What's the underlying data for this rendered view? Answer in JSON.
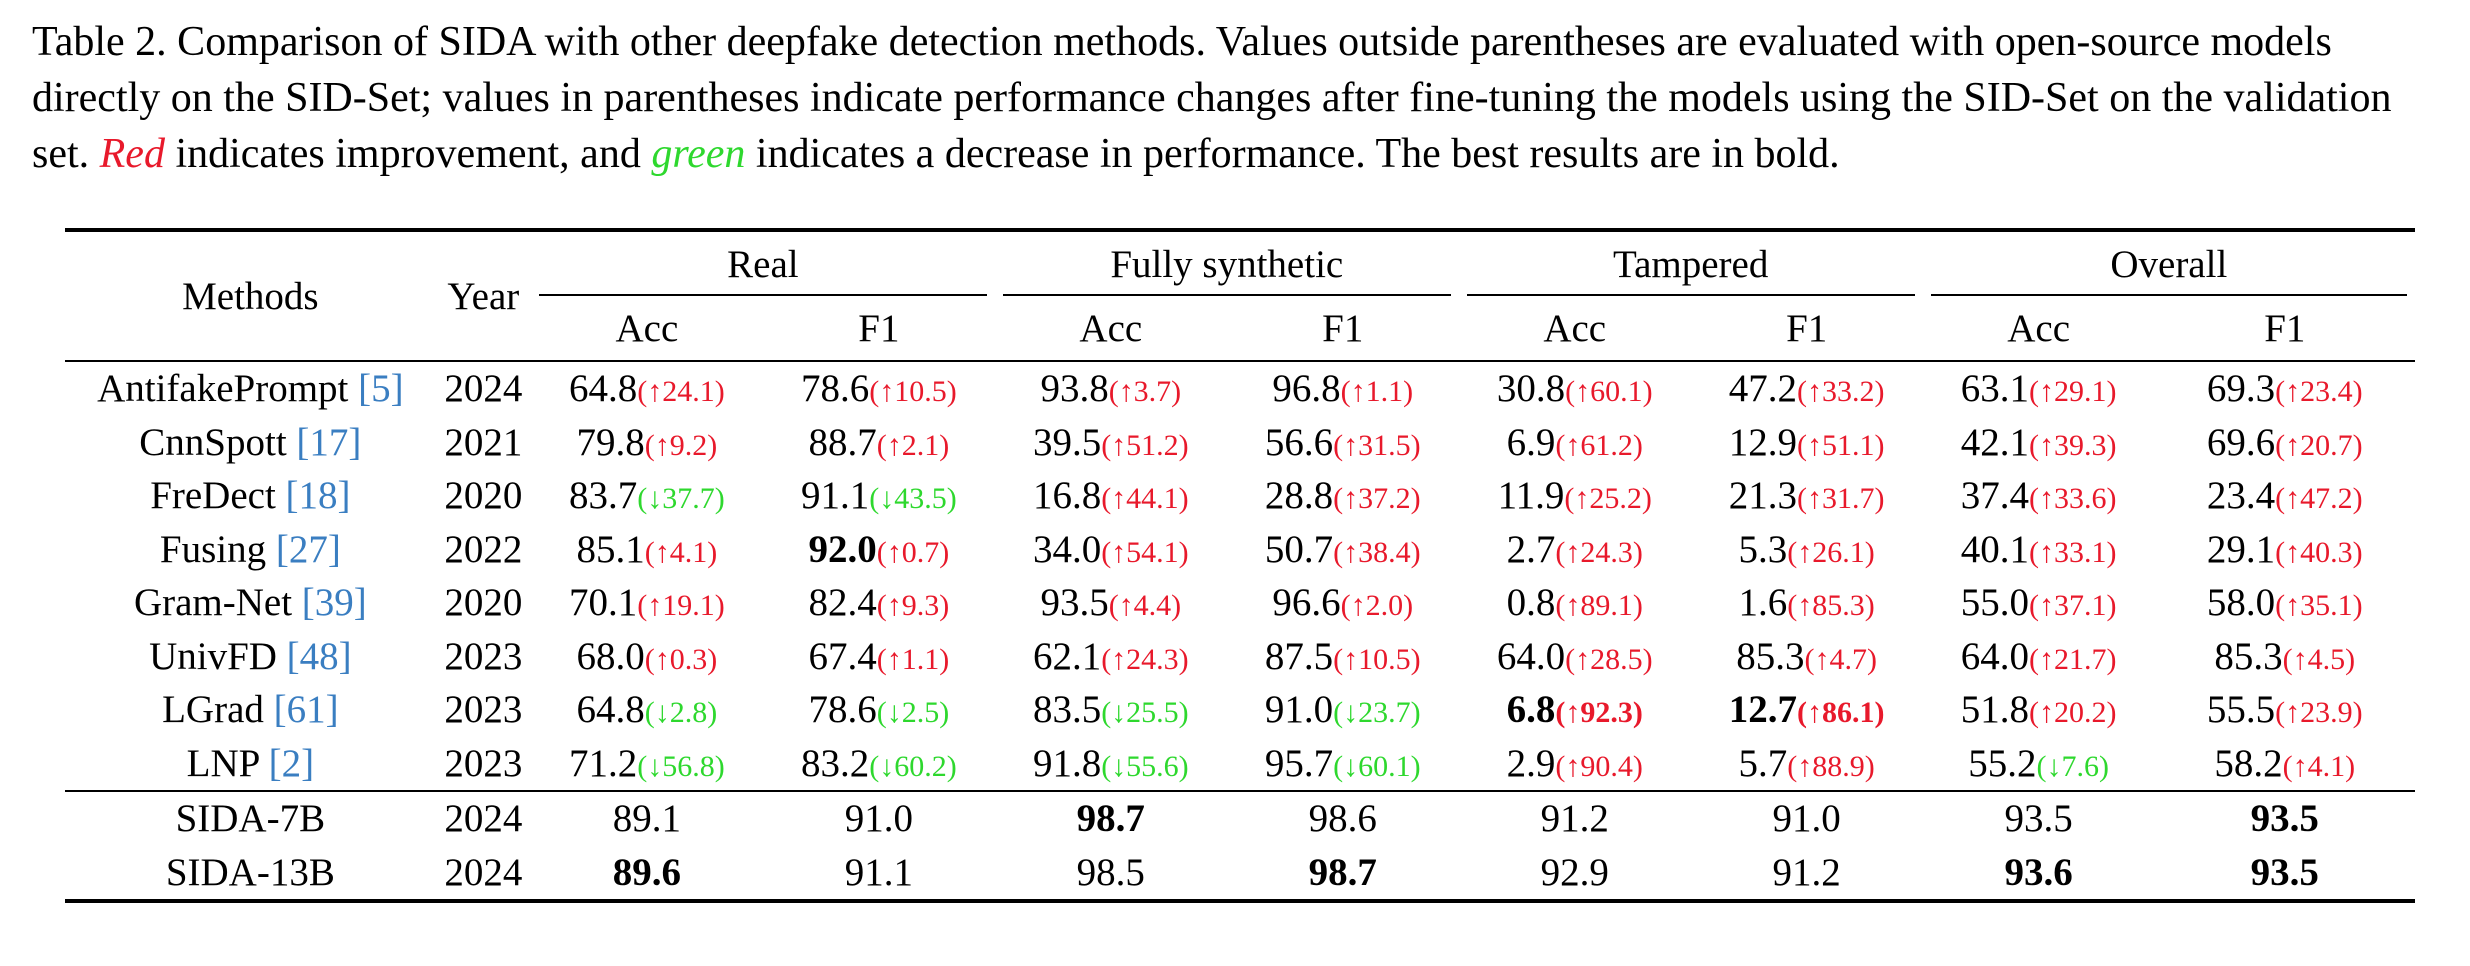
{
  "caption": {
    "prefix": "Table 2. Comparison of SIDA with other deepfake detection methods. Values outside parentheses are evaluated with open-source models directly on the SID-Set; values in parentheses indicate performance changes after fine-tuning the models using the SID-Set on the validation set. ",
    "red_word": "Red",
    "middle": " indicates improvement, and ",
    "green_word": "green",
    "suffix": " indicates a decrease in performance. The best results are in bold."
  },
  "header": {
    "methods": "Methods",
    "year": "Year",
    "groups": [
      "Real",
      "Fully synthetic",
      "Tampered",
      "Overall"
    ],
    "subcols": [
      "Acc",
      "F1",
      "Acc",
      "F1",
      "Acc",
      "F1",
      "Acc",
      "F1"
    ]
  },
  "rows": [
    {
      "name": "AntifakePrompt ",
      "cite": "[5]",
      "year": "2024",
      "cells": [
        [
          "64.8",
          "(↑24.1)",
          "up"
        ],
        [
          "78.6",
          "(↑10.5)",
          "up"
        ],
        [
          "93.8",
          "(↑3.7)",
          "up"
        ],
        [
          "96.8",
          "(↑1.1)",
          "up"
        ],
        [
          "30.8",
          "(↑60.1)",
          "up"
        ],
        [
          "47.2",
          "(↑33.2)",
          "up"
        ],
        [
          "63.1",
          "(↑29.1)",
          "up"
        ],
        [
          "69.3",
          "(↑23.4)",
          "up"
        ]
      ]
    },
    {
      "name": "CnnSpott ",
      "cite": "[17]",
      "year": "2021",
      "cells": [
        [
          "79.8",
          "(↑9.2)",
          "up"
        ],
        [
          "88.7",
          "(↑2.1)",
          "up"
        ],
        [
          "39.5",
          "(↑51.2)",
          "up"
        ],
        [
          "56.6",
          "(↑31.5)",
          "up"
        ],
        [
          "6.9",
          "(↑61.2)",
          "up"
        ],
        [
          "12.9",
          "(↑51.1)",
          "up"
        ],
        [
          "42.1",
          "(↑39.3)",
          "up"
        ],
        [
          "69.6",
          "(↑20.7)",
          "up"
        ]
      ]
    },
    {
      "name": "FreDect ",
      "cite": "[18]",
      "year": "2020",
      "cells": [
        [
          "83.7",
          "(↓37.7)",
          "dn"
        ],
        [
          "91.1",
          "(↓43.5)",
          "dn"
        ],
        [
          "16.8",
          "(↑44.1)",
          "up"
        ],
        [
          "28.8",
          "(↑37.2)",
          "up"
        ],
        [
          "11.9",
          "(↑25.2)",
          "up"
        ],
        [
          "21.3",
          "(↑31.7)",
          "up"
        ],
        [
          "37.4",
          "(↑33.6)",
          "up"
        ],
        [
          "23.4",
          "(↑47.2)",
          "up"
        ]
      ]
    },
    {
      "name": "Fusing ",
      "cite": "[27]",
      "year": "2022",
      "cells": [
        [
          "85.1",
          "(↑4.1)",
          "up"
        ],
        [
          "92.0",
          "(↑0.7)",
          "up",
          "b"
        ],
        [
          "34.0",
          "(↑54.1)",
          "up"
        ],
        [
          "50.7",
          "(↑38.4)",
          "up"
        ],
        [
          "2.7",
          "(↑24.3)",
          "up"
        ],
        [
          "5.3",
          "(↑26.1)",
          "up"
        ],
        [
          "40.1",
          "(↑33.1)",
          "up"
        ],
        [
          "29.1",
          "(↑40.3)",
          "up"
        ]
      ]
    },
    {
      "name": "Gram-Net ",
      "cite": "[39]",
      "year": "2020",
      "cells": [
        [
          "70.1",
          "(↑19.1)",
          "up"
        ],
        [
          "82.4",
          "(↑9.3)",
          "up"
        ],
        [
          "93.5",
          "(↑4.4)",
          "up"
        ],
        [
          "96.6",
          "(↑2.0)",
          "up"
        ],
        [
          "0.8",
          "(↑89.1)",
          "up"
        ],
        [
          "1.6",
          "(↑85.3)",
          "up"
        ],
        [
          "55.0",
          "(↑37.1)",
          "up"
        ],
        [
          "58.0",
          "(↑35.1)",
          "up"
        ]
      ]
    },
    {
      "name": "UnivFD ",
      "cite": "[48]",
      "year": "2023",
      "cells": [
        [
          "68.0",
          "(↑0.3)",
          "up"
        ],
        [
          "67.4",
          "(↑1.1)",
          "up"
        ],
        [
          "62.1",
          "(↑24.3)",
          "up"
        ],
        [
          "87.5",
          "(↑10.5)",
          "up"
        ],
        [
          "64.0",
          "(↑28.5)",
          "up"
        ],
        [
          "85.3",
          "(↑4.7)",
          "up"
        ],
        [
          "64.0",
          "(↑21.7)",
          "up"
        ],
        [
          "85.3",
          "(↑4.5)",
          "up"
        ]
      ]
    },
    {
      "name": "LGrad ",
      "cite": "[61]",
      "year": "2023",
      "cells": [
        [
          "64.8",
          "(↓2.8)",
          "dn"
        ],
        [
          "78.6",
          "(↓2.5)",
          "dn"
        ],
        [
          "83.5",
          "(↓25.5)",
          "dn"
        ],
        [
          "91.0",
          "(↓23.7)",
          "dn"
        ],
        [
          "6.8",
          "(↑92.3)",
          "up",
          "b",
          "bb"
        ],
        [
          "12.7",
          "(↑86.1)",
          "up",
          "b",
          "bb"
        ],
        [
          "51.8",
          "(↑20.2)",
          "up"
        ],
        [
          "55.5",
          "(↑23.9)",
          "up"
        ]
      ]
    },
    {
      "name": "LNP ",
      "cite": "[2]",
      "year": "2023",
      "cells": [
        [
          "71.2",
          "(↓56.8)",
          "dn"
        ],
        [
          "83.2",
          "(↓60.2)",
          "dn"
        ],
        [
          "91.8",
          "(↓55.6)",
          "dn"
        ],
        [
          "95.7",
          "(↓60.1)",
          "dn"
        ],
        [
          "2.9",
          "(↑90.4)",
          "up"
        ],
        [
          "5.7",
          "(↑88.9)",
          "up"
        ],
        [
          "55.2",
          "(↓7.6)",
          "dn"
        ],
        [
          "58.2",
          "(↑4.1)",
          "up"
        ]
      ]
    }
  ],
  "sida_rows": [
    {
      "name": "SIDA-7B",
      "year": "2024",
      "cells": [
        [
          "89.1",
          ""
        ],
        [
          "91.0",
          ""
        ],
        [
          "98.7",
          "b"
        ],
        [
          "98.6",
          ""
        ],
        [
          "91.2",
          ""
        ],
        [
          "91.0",
          ""
        ],
        [
          "93.5",
          ""
        ],
        [
          "93.5",
          "b"
        ]
      ]
    },
    {
      "name": "SIDA-13B",
      "year": "2024",
      "cells": [
        [
          "89.6",
          "b"
        ],
        [
          "91.1",
          ""
        ],
        [
          "98.5",
          ""
        ],
        [
          "98.7",
          "b"
        ],
        [
          "92.9",
          ""
        ],
        [
          "91.2",
          ""
        ],
        [
          "93.6",
          "b"
        ],
        [
          "93.5",
          "b"
        ]
      ]
    }
  ]
}
